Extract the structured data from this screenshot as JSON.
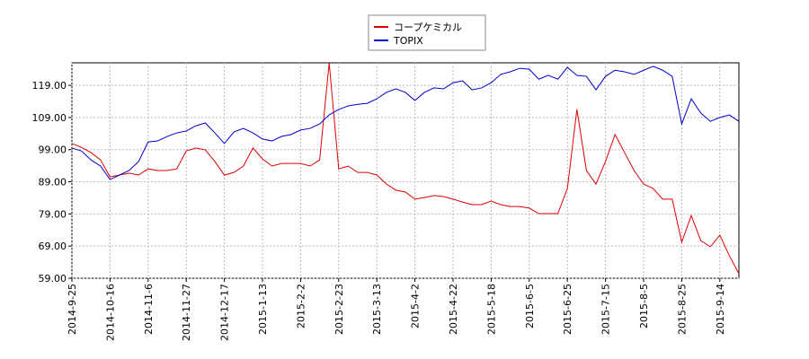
{
  "chart_data": {
    "type": "line",
    "categories": [
      "2014-9-25",
      null,
      null,
      null,
      "2014-10-16",
      null,
      null,
      null,
      "2014-11-6",
      null,
      null,
      null,
      "2014-11-27",
      null,
      null,
      null,
      "2014-12-17",
      null,
      null,
      null,
      "2015-1-13",
      null,
      null,
      null,
      "2015-2-2",
      null,
      null,
      null,
      "2015-2-23",
      null,
      null,
      null,
      "2015-3-13",
      null,
      null,
      null,
      "2015-4-2",
      null,
      null,
      null,
      "2015-4-22",
      null,
      null,
      null,
      "2015-5-18",
      null,
      null,
      null,
      "2015-6-5",
      null,
      null,
      null,
      "2015-6-25",
      null,
      null,
      null,
      "2015-7-15",
      null,
      null,
      null,
      "2015-8-5",
      null,
      null,
      null,
      "2015-8-25",
      null,
      null,
      null,
      "2015-9-14",
      null,
      null
    ],
    "series": [
      {
        "name": "コープケミカル",
        "color": "#dd0000",
        "values": [
          100.9,
          99.7,
          98.1,
          95.8,
          90.5,
          91.1,
          91.7,
          91.1,
          93,
          92.5,
          92.5,
          93,
          98.6,
          99.5,
          98.9,
          95.3,
          91.1,
          91.9,
          93.9,
          99.5,
          96.1,
          93.9,
          94.7,
          94.7,
          94.7,
          93.9,
          95.8,
          126,
          93,
          93.9,
          91.9,
          91.9,
          91.1,
          88.3,
          86.4,
          85.8,
          83.6,
          84.1,
          84.7,
          84.4,
          83.6,
          82.7,
          81.9,
          81.9,
          83,
          81.9,
          81.3,
          81.3,
          80.8,
          79.1,
          79.1,
          79.1,
          86.9,
          111.5,
          92.5,
          88.3,
          95.3,
          103.7,
          98.1,
          92.5,
          88.3,
          86.9,
          83.6,
          83.6,
          70.2,
          78.5,
          70.7,
          68.8,
          72.4,
          66,
          60.4
        ]
      },
      {
        "name": "TOPIX",
        "color": "#0000cc",
        "values": [
          99.5,
          98.6,
          95.8,
          93.9,
          89.7,
          91.1,
          92.5,
          95.3,
          101.4,
          101.7,
          103.1,
          104.2,
          104.8,
          106.4,
          107.3,
          104.2,
          100.9,
          104.5,
          105.6,
          104.2,
          102.3,
          101.7,
          103.1,
          103.7,
          105.1,
          105.6,
          107,
          109.8,
          111.5,
          112.6,
          113.1,
          113.4,
          114.8,
          116.8,
          117.9,
          116.8,
          114.3,
          116.8,
          118.2,
          117.9,
          119.8,
          120.4,
          117.6,
          118.2,
          119.8,
          122.4,
          123.2,
          124.3,
          124,
          120.9,
          122.1,
          120.9,
          124.6,
          122.1,
          121.8,
          117.6,
          121.8,
          123.7,
          123.2,
          122.4,
          123.7,
          124.9,
          123.7,
          121.8,
          107,
          114.8,
          110.4,
          107.8,
          109,
          109.8,
          107.8
        ]
      }
    ],
    "ylim": [
      59,
      126
    ],
    "yticks": [
      {
        "value": 59,
        "label": "59.00"
      },
      {
        "value": 69,
        "label": "69.00"
      },
      {
        "value": 79,
        "label": "79.00"
      },
      {
        "value": 89,
        "label": "89.00"
      },
      {
        "value": 99,
        "label": "99.00"
      },
      {
        "value": 109,
        "label": "109.00"
      },
      {
        "value": 119,
        "label": "119.00"
      }
    ],
    "grid": true
  }
}
